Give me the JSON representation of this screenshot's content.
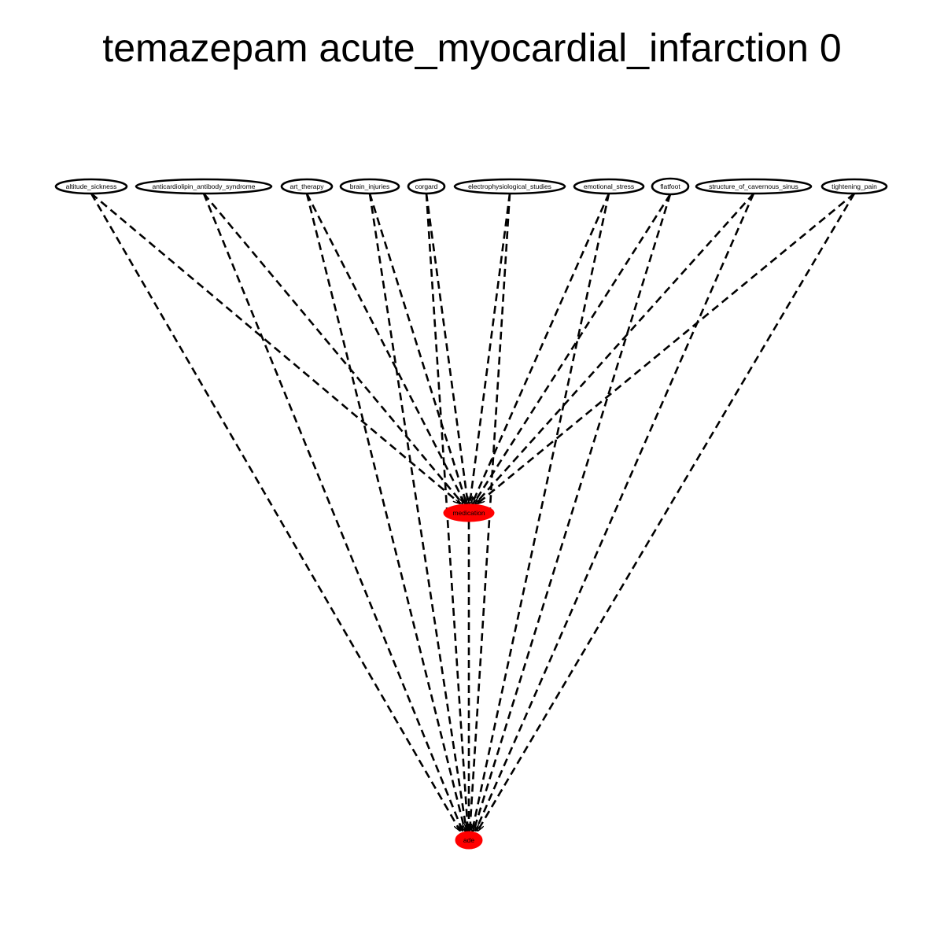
{
  "title": "temazepam acute_myocardial_infarction 0",
  "colors": {
    "node_fill_default": "#ffffff",
    "node_fill_highlight": "#ff0000",
    "stroke": "#000000"
  },
  "nodes": [
    {
      "id": "altitude_sickness",
      "label": "altitude_sickness",
      "highlight": false
    },
    {
      "id": "anticardiolipin_antibody_syndrome",
      "label": "anticardiolipin_antibody_syndrome",
      "highlight": false
    },
    {
      "id": "art_therapy",
      "label": "art_therapy",
      "highlight": false
    },
    {
      "id": "brain_injuries",
      "label": "brain_injuries",
      "highlight": false
    },
    {
      "id": "corgard",
      "label": "corgard",
      "highlight": false
    },
    {
      "id": "electrophysiological_studies",
      "label": "electrophysiological_studies",
      "highlight": false
    },
    {
      "id": "emotional_stress",
      "label": "emotional_stress",
      "highlight": false
    },
    {
      "id": "flatfoot",
      "label": "flatfoot",
      "highlight": false
    },
    {
      "id": "structure_of_cavernous_sinus",
      "label": "structure_of_cavernous_sinus",
      "highlight": false
    },
    {
      "id": "tightening_pain",
      "label": "tightening_pain",
      "highlight": false
    },
    {
      "id": "medication",
      "label": "medication",
      "highlight": true
    },
    {
      "id": "ade",
      "label": "ade",
      "highlight": true
    }
  ],
  "edges": [
    {
      "from": "altitude_sickness",
      "to": "medication",
      "style": "dashed"
    },
    {
      "from": "altitude_sickness",
      "to": "ade",
      "style": "dashed"
    },
    {
      "from": "anticardiolipin_antibody_syndrome",
      "to": "medication",
      "style": "dashed"
    },
    {
      "from": "anticardiolipin_antibody_syndrome",
      "to": "ade",
      "style": "dashed"
    },
    {
      "from": "art_therapy",
      "to": "medication",
      "style": "dashed"
    },
    {
      "from": "art_therapy",
      "to": "ade",
      "style": "dashed"
    },
    {
      "from": "brain_injuries",
      "to": "medication",
      "style": "dashed"
    },
    {
      "from": "brain_injuries",
      "to": "ade",
      "style": "dashed"
    },
    {
      "from": "corgard",
      "to": "medication",
      "style": "dashed"
    },
    {
      "from": "corgard",
      "to": "ade",
      "style": "dashed"
    },
    {
      "from": "electrophysiological_studies",
      "to": "medication",
      "style": "dashed"
    },
    {
      "from": "electrophysiological_studies",
      "to": "ade",
      "style": "dashed"
    },
    {
      "from": "emotional_stress",
      "to": "medication",
      "style": "dashed"
    },
    {
      "from": "emotional_stress",
      "to": "ade",
      "style": "dashed"
    },
    {
      "from": "flatfoot",
      "to": "medication",
      "style": "dashed"
    },
    {
      "from": "flatfoot",
      "to": "ade",
      "style": "dashed"
    },
    {
      "from": "structure_of_cavernous_sinus",
      "to": "medication",
      "style": "dashed"
    },
    {
      "from": "structure_of_cavernous_sinus",
      "to": "ade",
      "style": "dashed"
    },
    {
      "from": "tightening_pain",
      "to": "medication",
      "style": "dashed"
    },
    {
      "from": "tightening_pain",
      "to": "ade",
      "style": "dashed"
    },
    {
      "from": "medication",
      "to": "ade",
      "style": "dashed"
    }
  ]
}
